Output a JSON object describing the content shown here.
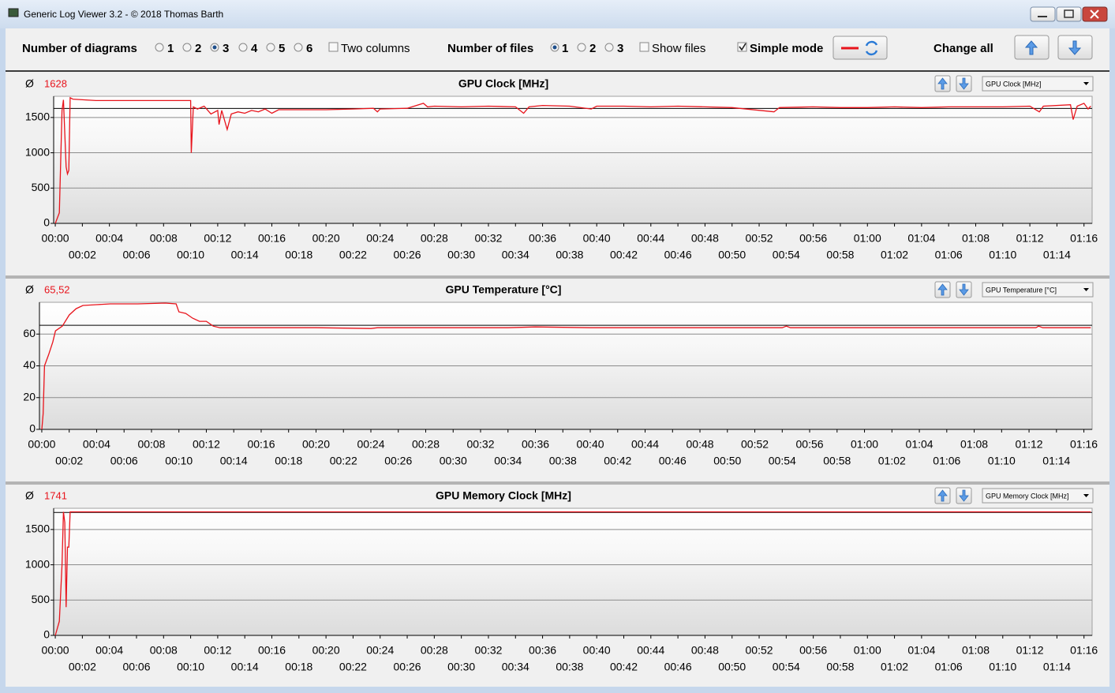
{
  "window": {
    "title": "Generic Log Viewer 3.2 - © 2018 Thomas Barth"
  },
  "toolbar": {
    "diagrams_label": "Number of diagrams",
    "diagram_options": [
      "1",
      "2",
      "3",
      "4",
      "5",
      "6"
    ],
    "two_columns": "Two columns",
    "files_label": "Number of files",
    "file_options": [
      "1",
      "2",
      "3"
    ],
    "show_files": "Show files",
    "simple_mode": "Simple mode",
    "change_all": "Change all"
  },
  "chart_data": [
    {
      "type": "line",
      "title": "GPU Clock [MHz]",
      "selector": "GPU Clock [MHz]",
      "average_symbol": "Ø",
      "average": {
        "value": 1628,
        "label": "1628"
      },
      "color": "#e8141c",
      "grid": true,
      "x": [
        0,
        0.3,
        0.5,
        0.6,
        0.8,
        0.9,
        1.0,
        1.1,
        1.3,
        3,
        10.0,
        10.05,
        10.2,
        10.5,
        11,
        11.5,
        12,
        12.1,
        12.3,
        12.7,
        13,
        13.5,
        14,
        14.5,
        15,
        15.5,
        16,
        16.5,
        18,
        20,
        22,
        23.5,
        23.8,
        24,
        26,
        27.2,
        27.5,
        28,
        30,
        32,
        34,
        34.6,
        35,
        36,
        38,
        39.6,
        40,
        42,
        44,
        46,
        48,
        50,
        53.1,
        53.5,
        56,
        58,
        60,
        62,
        64,
        66,
        68,
        70,
        72,
        72.7,
        73,
        75,
        75.2,
        75.5,
        76,
        76.3,
        76.5
      ],
      "values": [
        0,
        150,
        1600,
        1750,
        800,
        700,
        750,
        1780,
        1760,
        1740,
        1740,
        1000,
        1650,
        1620,
        1660,
        1550,
        1600,
        1400,
        1600,
        1330,
        1550,
        1580,
        1560,
        1600,
        1580,
        1620,
        1560,
        1610,
        1610,
        1610,
        1620,
        1630,
        1580,
        1620,
        1630,
        1700,
        1650,
        1660,
        1650,
        1660,
        1650,
        1560,
        1650,
        1670,
        1660,
        1620,
        1660,
        1660,
        1650,
        1660,
        1650,
        1640,
        1580,
        1640,
        1650,
        1640,
        1640,
        1650,
        1640,
        1650,
        1650,
        1650,
        1660,
        1580,
        1660,
        1680,
        1470,
        1660,
        1700,
        1620,
        1660
      ],
      "xlim": [
        -0.12,
        76.6
      ],
      "ylim": [
        0,
        1800
      ],
      "yticks": [
        0,
        500,
        1000,
        1500
      ],
      "xticks": [
        {
          "value": 0,
          "label": "00:00"
        },
        {
          "value": 2,
          "label": "00:02"
        },
        {
          "value": 4,
          "label": "00:04"
        },
        {
          "value": 6,
          "label": "00:06"
        },
        {
          "value": 8,
          "label": "00:08"
        },
        {
          "value": 10,
          "label": "00:10"
        },
        {
          "value": 12,
          "label": "00:12"
        },
        {
          "value": 14,
          "label": "00:14"
        },
        {
          "value": 16,
          "label": "00:16"
        },
        {
          "value": 18,
          "label": "00:18"
        },
        {
          "value": 20,
          "label": "00:20"
        },
        {
          "value": 22,
          "label": "00:22"
        },
        {
          "value": 24,
          "label": "00:24"
        },
        {
          "value": 26,
          "label": "00:26"
        },
        {
          "value": 28,
          "label": "00:28"
        },
        {
          "value": 30,
          "label": "00:30"
        },
        {
          "value": 32,
          "label": "00:32"
        },
        {
          "value": 34,
          "label": "00:34"
        },
        {
          "value": 36,
          "label": "00:36"
        },
        {
          "value": 38,
          "label": "00:38"
        },
        {
          "value": 40,
          "label": "00:40"
        },
        {
          "value": 42,
          "label": "00:42"
        },
        {
          "value": 44,
          "label": "00:44"
        },
        {
          "value": 46,
          "label": "00:46"
        },
        {
          "value": 48,
          "label": "00:48"
        },
        {
          "value": 50,
          "label": "00:50"
        },
        {
          "value": 52,
          "label": "00:52"
        },
        {
          "value": 54,
          "label": "00:54"
        },
        {
          "value": 56,
          "label": "00:56"
        },
        {
          "value": 58,
          "label": "00:58"
        },
        {
          "value": 60,
          "label": "01:00"
        },
        {
          "value": 62,
          "label": "01:02"
        },
        {
          "value": 64,
          "label": "01:04"
        },
        {
          "value": 66,
          "label": "01:06"
        },
        {
          "value": 68,
          "label": "01:08"
        },
        {
          "value": 70,
          "label": "01:10"
        },
        {
          "value": 72,
          "label": "01:12"
        },
        {
          "value": 74,
          "label": "01:14"
        },
        {
          "value": 76,
          "label": "01:16"
        }
      ]
    },
    {
      "type": "line",
      "title": "GPU Temperature [°C]",
      "selector": "GPU Temperature [°C]",
      "average_symbol": "Ø",
      "average": {
        "value": 65.52,
        "label": "65,52"
      },
      "color": "#e8141c",
      "grid": true,
      "x": [
        0,
        0.1,
        0.2,
        0.5,
        0.8,
        1,
        1.5,
        2,
        2.5,
        3,
        4,
        5,
        7,
        9,
        9.8,
        10,
        10.5,
        11,
        11.5,
        12,
        12.5,
        13,
        20,
        24,
        24.5,
        34,
        36,
        40,
        54,
        54.3,
        54.6,
        72.5,
        72.7,
        73,
        76.5
      ],
      "values": [
        0,
        10,
        40,
        47,
        55,
        62,
        65,
        72,
        76,
        78,
        78.5,
        79,
        79,
        79.5,
        79,
        74,
        73,
        70,
        68,
        68,
        65,
        64,
        64,
        63.5,
        64,
        64,
        64.5,
        64,
        64,
        65,
        64,
        64,
        65,
        64,
        64
      ],
      "xlim": [
        -0.17,
        76.6
      ],
      "ylim": [
        0,
        80
      ],
      "yticks": [
        0,
        20,
        40,
        60
      ],
      "xticks": [
        {
          "value": 0,
          "label": "00:00"
        },
        {
          "value": 2,
          "label": "00:02"
        },
        {
          "value": 4,
          "label": "00:04"
        },
        {
          "value": 6,
          "label": "00:06"
        },
        {
          "value": 8,
          "label": "00:08"
        },
        {
          "value": 10,
          "label": "00:10"
        },
        {
          "value": 12,
          "label": "00:12"
        },
        {
          "value": 14,
          "label": "00:14"
        },
        {
          "value": 16,
          "label": "00:16"
        },
        {
          "value": 18,
          "label": "00:18"
        },
        {
          "value": 20,
          "label": "00:20"
        },
        {
          "value": 22,
          "label": "00:22"
        },
        {
          "value": 24,
          "label": "00:24"
        },
        {
          "value": 26,
          "label": "00:26"
        },
        {
          "value": 28,
          "label": "00:28"
        },
        {
          "value": 30,
          "label": "00:30"
        },
        {
          "value": 32,
          "label": "00:32"
        },
        {
          "value": 34,
          "label": "00:34"
        },
        {
          "value": 36,
          "label": "00:36"
        },
        {
          "value": 38,
          "label": "00:38"
        },
        {
          "value": 40,
          "label": "00:40"
        },
        {
          "value": 42,
          "label": "00:42"
        },
        {
          "value": 44,
          "label": "00:44"
        },
        {
          "value": 46,
          "label": "00:46"
        },
        {
          "value": 48,
          "label": "00:48"
        },
        {
          "value": 50,
          "label": "00:50"
        },
        {
          "value": 52,
          "label": "00:52"
        },
        {
          "value": 54,
          "label": "00:54"
        },
        {
          "value": 56,
          "label": "00:56"
        },
        {
          "value": 58,
          "label": "00:58"
        },
        {
          "value": 60,
          "label": "01:00"
        },
        {
          "value": 62,
          "label": "01:02"
        },
        {
          "value": 64,
          "label": "01:04"
        },
        {
          "value": 66,
          "label": "01:06"
        },
        {
          "value": 68,
          "label": "01:08"
        },
        {
          "value": 70,
          "label": "01:10"
        },
        {
          "value": 72,
          "label": "01:12"
        },
        {
          "value": 74,
          "label": "01:14"
        },
        {
          "value": 76,
          "label": "01:16"
        }
      ]
    },
    {
      "type": "line",
      "title": "GPU Memory Clock [MHz]",
      "selector": "GPU Memory Clock [MHz]",
      "average_symbol": "Ø",
      "average": {
        "value": 1741,
        "label": "1741"
      },
      "color": "#e8141c",
      "grid": true,
      "x": [
        0,
        0.3,
        0.5,
        0.6,
        0.7,
        0.8,
        0.9,
        1.0,
        1.1,
        76.5
      ],
      "values": [
        0,
        200,
        1000,
        1750,
        1600,
        400,
        1250,
        1250,
        1750,
        1750
      ],
      "xlim": [
        -0.12,
        76.6
      ],
      "ylim": [
        0,
        1800
      ],
      "yticks": [
        0,
        500,
        1000,
        1500
      ],
      "xticks": [
        {
          "value": 0,
          "label": "00:00"
        },
        {
          "value": 2,
          "label": "00:02"
        },
        {
          "value": 4,
          "label": "00:04"
        },
        {
          "value": 6,
          "label": "00:06"
        },
        {
          "value": 8,
          "label": "00:08"
        },
        {
          "value": 10,
          "label": "00:10"
        },
        {
          "value": 12,
          "label": "00:12"
        },
        {
          "value": 14,
          "label": "00:14"
        },
        {
          "value": 16,
          "label": "00:16"
        },
        {
          "value": 18,
          "label": "00:18"
        },
        {
          "value": 20,
          "label": "00:20"
        },
        {
          "value": 22,
          "label": "00:22"
        },
        {
          "value": 24,
          "label": "00:24"
        },
        {
          "value": 26,
          "label": "00:26"
        },
        {
          "value": 28,
          "label": "00:28"
        },
        {
          "value": 30,
          "label": "00:30"
        },
        {
          "value": 32,
          "label": "00:32"
        },
        {
          "value": 34,
          "label": "00:34"
        },
        {
          "value": 36,
          "label": "00:36"
        },
        {
          "value": 38,
          "label": "00:38"
        },
        {
          "value": 40,
          "label": "00:40"
        },
        {
          "value": 42,
          "label": "00:42"
        },
        {
          "value": 44,
          "label": "00:44"
        },
        {
          "value": 46,
          "label": "00:46"
        },
        {
          "value": 48,
          "label": "00:48"
        },
        {
          "value": 50,
          "label": "00:50"
        },
        {
          "value": 52,
          "label": "00:52"
        },
        {
          "value": 54,
          "label": "00:54"
        },
        {
          "value": 56,
          "label": "00:56"
        },
        {
          "value": 58,
          "label": "00:58"
        },
        {
          "value": 60,
          "label": "01:00"
        },
        {
          "value": 62,
          "label": "01:02"
        },
        {
          "value": 64,
          "label": "01:04"
        },
        {
          "value": 66,
          "label": "01:06"
        },
        {
          "value": 68,
          "label": "01:08"
        },
        {
          "value": 70,
          "label": "01:10"
        },
        {
          "value": 72,
          "label": "01:12"
        },
        {
          "value": 74,
          "label": "01:14"
        },
        {
          "value": 76,
          "label": "01:16"
        }
      ]
    }
  ]
}
